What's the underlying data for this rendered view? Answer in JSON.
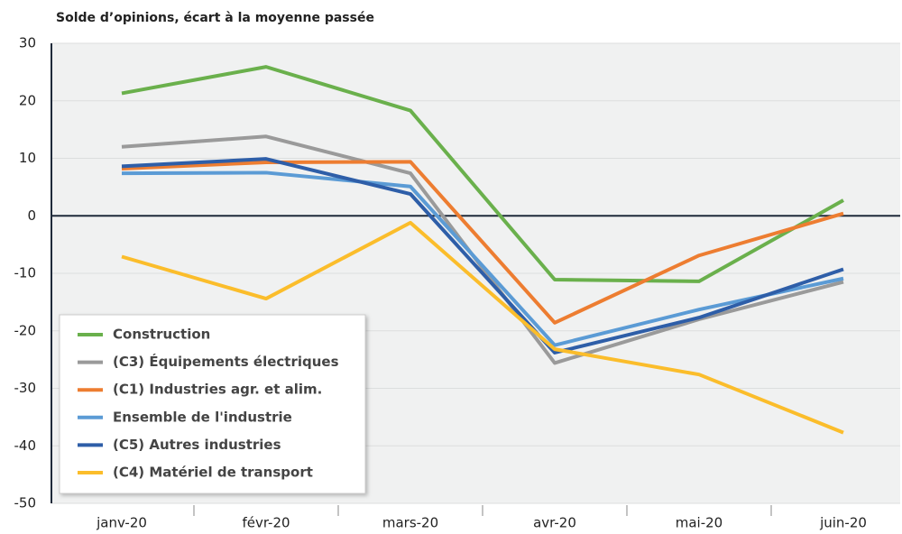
{
  "chart_data": {
    "type": "line",
    "title": "Solde d’opinions, écart à la moyenne passée",
    "categories": [
      "janv-20",
      "févr-20",
      "mars-20",
      "avr-20",
      "mai-20",
      "juin-20"
    ],
    "series": [
      {
        "name": "Construction",
        "color": "#6ab04c",
        "values": [
          21.3,
          25.9,
          18.3,
          -11.1,
          -11.4,
          2.7
        ]
      },
      {
        "name": "(C3) Équipements électriques",
        "color": "#9a9a9a",
        "values": [
          12.0,
          13.8,
          7.4,
          -25.6,
          -18.0,
          -11.5
        ]
      },
      {
        "name": "(C1) Industries agr. et alim.",
        "color": "#ed7d31",
        "values": [
          8.2,
          9.3,
          9.4,
          -18.6,
          -6.9,
          0.4
        ]
      },
      {
        "name": "Ensemble de l'industrie",
        "color": "#5b9bd5",
        "values": [
          7.4,
          7.5,
          5.1,
          -22.5,
          -16.3,
          -10.9
        ]
      },
      {
        "name": "(C5) Autres industries",
        "color": "#2e5ea8",
        "values": [
          8.6,
          9.9,
          3.8,
          -23.8,
          -17.7,
          -9.3
        ]
      },
      {
        "name": "(C4) Matériel de transport",
        "color": "#fbbd2b",
        "values": [
          -7.1,
          -14.4,
          -1.2,
          -23.2,
          -27.6,
          -37.7
        ]
      }
    ],
    "ylim": [
      -50,
      30
    ],
    "yticks": [
      -50,
      -40,
      -30,
      -20,
      -10,
      0,
      10,
      20,
      30
    ],
    "grid": true,
    "legend": "lower left"
  }
}
